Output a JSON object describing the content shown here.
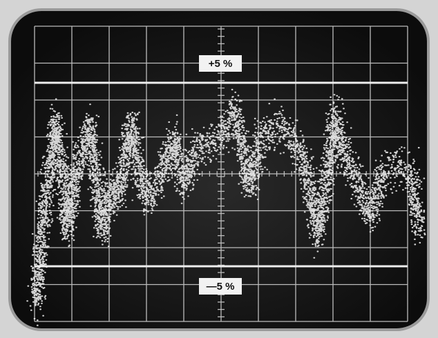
{
  "screen": {
    "upper_label": "+5 %",
    "lower_label": "—5 %"
  }
}
